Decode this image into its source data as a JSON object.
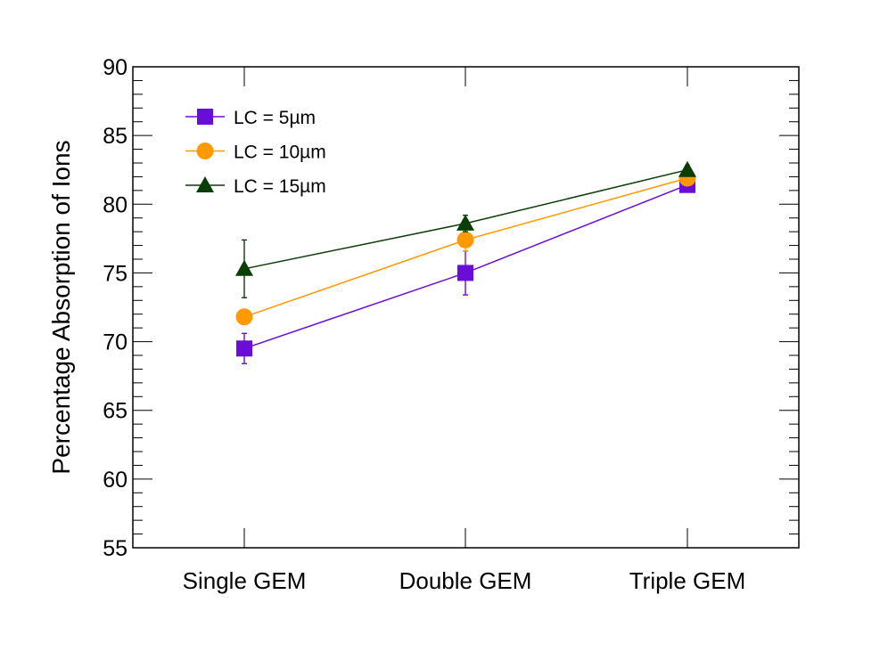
{
  "chart_data": {
    "type": "line",
    "title": "",
    "xlabel": "",
    "ylabel": "Percentage Absorption of Ions",
    "ylim": [
      55,
      90
    ],
    "yticks": [
      "55",
      "60",
      "65",
      "70",
      "75",
      "80",
      "85",
      "90"
    ],
    "categories": [
      "Single GEM",
      "Double GEM",
      "Triple GEM"
    ],
    "legend_position": "top-left",
    "series": [
      {
        "name": "LC = 5µm",
        "color": "#6a0dd8",
        "marker": "square",
        "values": [
          69.5,
          75.0,
          81.4
        ],
        "errors": [
          1.1,
          1.6,
          0.3
        ]
      },
      {
        "name": "LC = 10µm",
        "color": "#ff9900",
        "marker": "circle",
        "values": [
          71.8,
          77.4,
          81.9
        ],
        "errors": [
          0.3,
          0.8,
          0.3
        ]
      },
      {
        "name": "LC = 15µm",
        "color": "#0b3d06",
        "marker": "triangle",
        "values": [
          75.3,
          78.6,
          82.5
        ],
        "errors": [
          2.1,
          0.6,
          0.3
        ]
      }
    ]
  }
}
